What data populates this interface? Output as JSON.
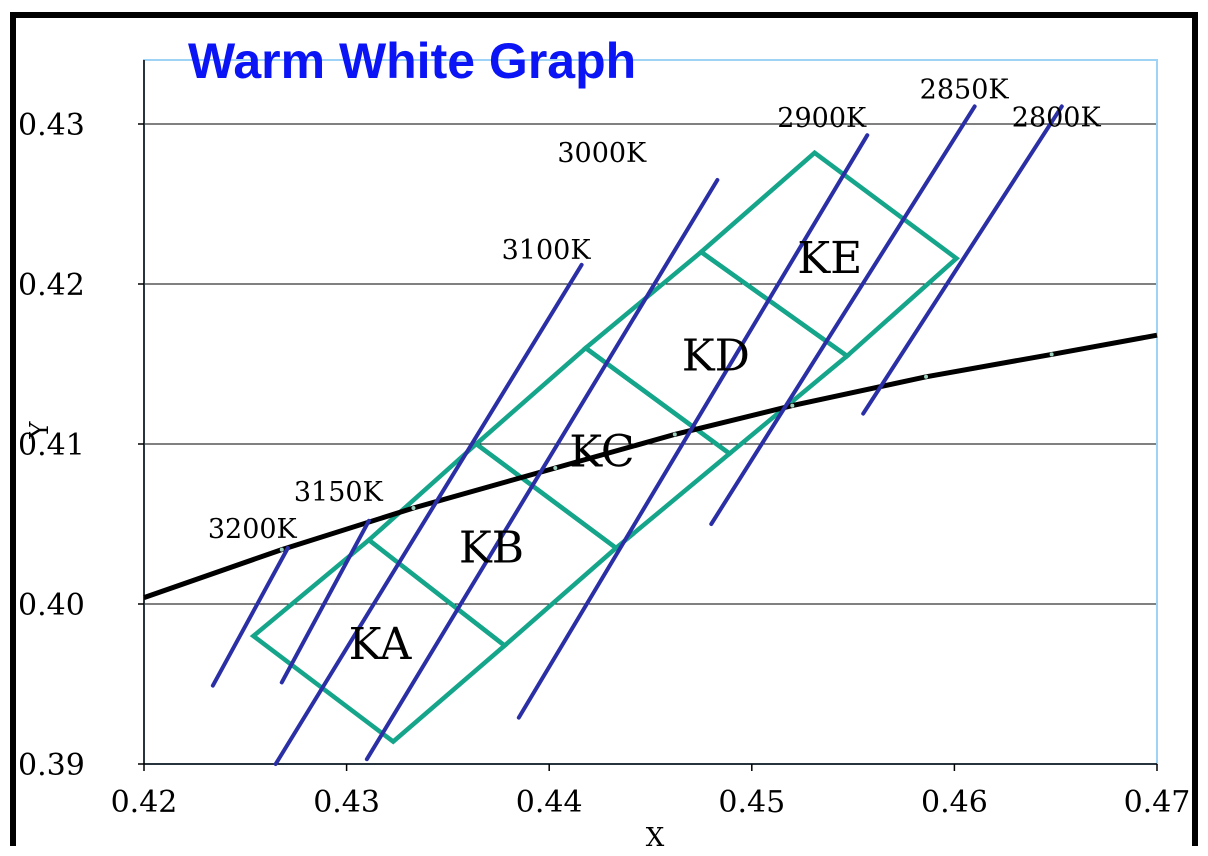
{
  "chart_data": {
    "type": "line",
    "title": "Warm White Graph",
    "xlabel": "X",
    "ylabel": "Y",
    "xlim": [
      0.42,
      0.47
    ],
    "ylim": [
      0.39,
      0.434
    ],
    "x_ticks": [
      0.42,
      0.43,
      0.44,
      0.45,
      0.46,
      0.47
    ],
    "x_tick_labels": [
      "0.42",
      "0.43",
      "0.44",
      "0.45",
      "0.46",
      "0.47"
    ],
    "y_ticks": [
      0.39,
      0.4,
      0.41,
      0.42,
      0.43
    ],
    "y_tick_labels": [
      "0.39",
      "0.40",
      "0.41",
      "0.42",
      "0.43"
    ],
    "grid": "horizontal",
    "colors": {
      "locus": "#000000",
      "isotherm": "#2b2fa6",
      "bin": "#14a58a",
      "title": "#0a14f5",
      "plot_border": "#9fd3f5",
      "grid": "#000000"
    },
    "blackbody_locus": {
      "x": [
        0.42,
        0.4268,
        0.4333,
        0.4403,
        0.4462,
        0.452,
        0.4586,
        0.4648,
        0.47
      ],
      "y": [
        0.4004,
        0.4034,
        0.406,
        0.4085,
        0.4106,
        0.4124,
        0.4142,
        0.4156,
        0.4168
      ]
    },
    "isotherms": [
      {
        "label": "3200K",
        "x1": 0.4234,
        "y1": 0.3949,
        "x2": 0.4271,
        "y2": 0.4035
      },
      {
        "label": "3150K",
        "x1": 0.4268,
        "y1": 0.3951,
        "x2": 0.4311,
        "y2": 0.4052
      },
      {
        "label": "3100K",
        "x1": 0.4265,
        "y1": 0.39,
        "x2": 0.4416,
        "y2": 0.4212
      },
      {
        "label": "3000K",
        "x1": 0.431,
        "y1": 0.3903,
        "x2": 0.4483,
        "y2": 0.4265
      },
      {
        "label": "2900K",
        "x1": 0.4385,
        "y1": 0.3929,
        "x2": 0.4557,
        "y2": 0.4293
      },
      {
        "label": "2850K",
        "x1": 0.448,
        "y1": 0.405,
        "x2": 0.461,
        "y2": 0.4311
      },
      {
        "label": "2800K",
        "x1": 0.4555,
        "y1": 0.4119,
        "x2": 0.4653,
        "y2": 0.4311
      }
    ],
    "bins": [
      {
        "label": "KA",
        "x": [
          0.4254,
          0.4311,
          0.4378,
          0.4323
        ],
        "y": [
          0.398,
          0.404,
          0.3974,
          0.3914
        ]
      },
      {
        "label": "KB",
        "x": [
          0.4311,
          0.4364,
          0.4433,
          0.4378
        ],
        "y": [
          0.404,
          0.41,
          0.4035,
          0.3974
        ]
      },
      {
        "label": "KC",
        "x": [
          0.4364,
          0.4418,
          0.4489,
          0.4433
        ],
        "y": [
          0.41,
          0.416,
          0.4094,
          0.4035
        ]
      },
      {
        "label": "KD",
        "x": [
          0.4418,
          0.4475,
          0.4547,
          0.4489
        ],
        "y": [
          0.416,
          0.422,
          0.4155,
          0.4094
        ]
      },
      {
        "label": "KE",
        "x": [
          0.4475,
          0.4531,
          0.4601,
          0.4547
        ],
        "y": [
          0.422,
          0.4282,
          0.4216,
          0.4155
        ]
      }
    ]
  }
}
